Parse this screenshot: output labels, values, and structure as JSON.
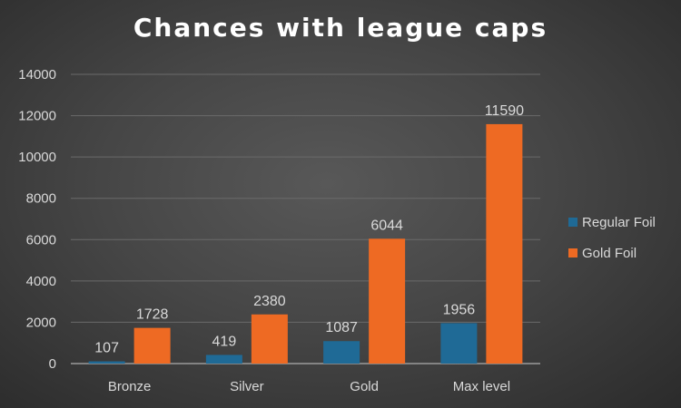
{
  "chart_data": {
    "type": "bar",
    "title": "Chances with league caps",
    "categories": [
      "Bronze",
      "Silver",
      "Gold",
      "Max level"
    ],
    "series": [
      {
        "name": "Regular Foil",
        "values": [
          107,
          419,
          1087,
          1956
        ],
        "color": "#1f6a96"
      },
      {
        "name": "Gold Foil",
        "values": [
          1728,
          2380,
          6044,
          11590
        ],
        "color": "#ee6a23"
      }
    ],
    "ylim": [
      0,
      14000
    ],
    "yticks": [
      "0",
      "2000",
      "4000",
      "6000",
      "8000",
      "10000",
      "12000",
      "14000"
    ],
    "grid": true,
    "legend": "right",
    "data_labels": true
  }
}
